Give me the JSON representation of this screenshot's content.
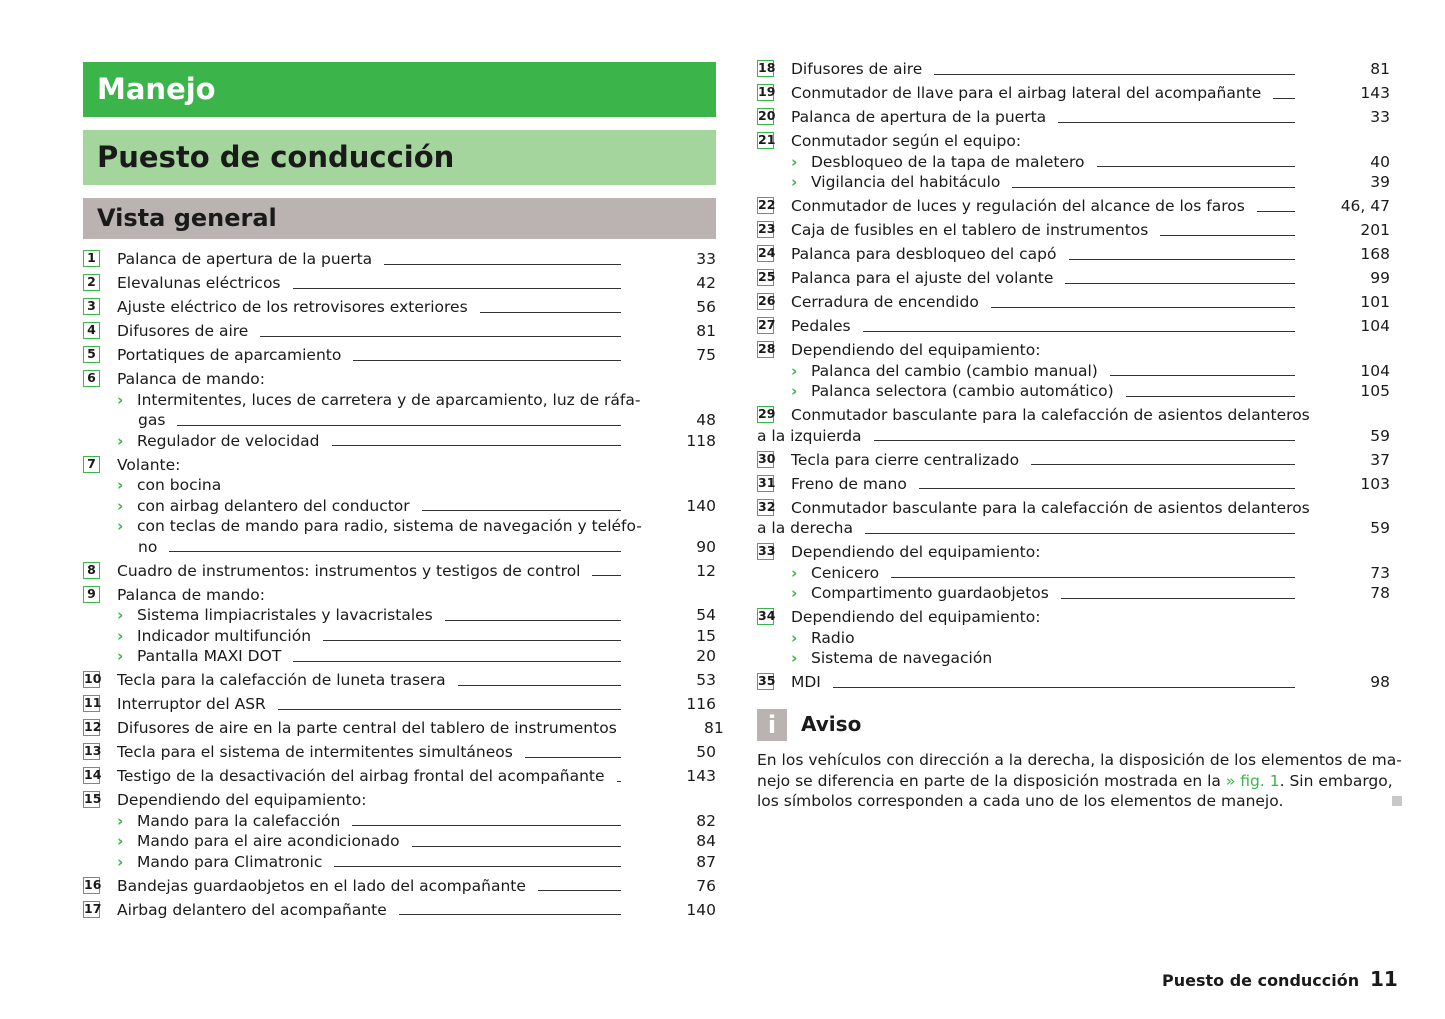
{
  "headers": {
    "chapter": "Manejo",
    "section": "Puesto de conducción",
    "subsection": "Vista general"
  },
  "colors": {
    "chapter_bg": "#3bb54a",
    "section_bg": "#a4d59c",
    "subsection_bg": "#bbb3b1",
    "accent": "#3bb54a"
  },
  "left_items": [
    {
      "num": "1",
      "text": "Palanca de apertura de la puerta",
      "page": "33"
    },
    {
      "num": "2",
      "text": "Elevalunas eléctricos",
      "page": "42"
    },
    {
      "num": "3",
      "text": "Ajuste eléctrico de los retrovisores exteriores",
      "page": "56"
    },
    {
      "num": "4",
      "text": "Difusores de aire",
      "page": "81"
    },
    {
      "num": "5",
      "text": "Portatiques de aparcamiento",
      "page": "75"
    },
    {
      "num": "6",
      "text": "Palanca de mando:",
      "subs": [
        {
          "text": "Intermitentes, luces de carretera y de aparcamiento, luz de ráfa-",
          "cont": "gas",
          "page": "48"
        },
        {
          "text": "Regulador de velocidad",
          "page": "118"
        }
      ]
    },
    {
      "num": "7",
      "text": "Volante:",
      "subs": [
        {
          "text": "con bocina"
        },
        {
          "text": "con airbag delantero del conductor",
          "page": "140"
        },
        {
          "text": "con teclas de mando para radio, sistema de navegación y teléfo-",
          "cont": "no",
          "page": "90"
        }
      ]
    },
    {
      "num": "8",
      "text": "Cuadro de instrumentos: instrumentos y testigos de control",
      "page": "12"
    },
    {
      "num": "9",
      "text": "Palanca de mando:",
      "subs": [
        {
          "text": "Sistema limpiacristales y lavacristales",
          "page": "54"
        },
        {
          "text": "Indicador multifunción",
          "page": "15"
        },
        {
          "text": "Pantalla MAXI DOT",
          "page": "20"
        }
      ]
    },
    {
      "num": "10",
      "text": "Tecla para la calefacción de luneta trasera",
      "page": "53"
    },
    {
      "num": "11",
      "text": "Interruptor del ASR",
      "page": "116"
    },
    {
      "num": "12",
      "text": "Difusores de aire en la parte central del tablero de instrumentos",
      "page": "81"
    },
    {
      "num": "13",
      "text": "Tecla para el sistema de intermitentes simultáneos",
      "page": "50"
    },
    {
      "num": "14",
      "text": "Testigo de la desactivación del airbag frontal del acompañante",
      "page": "143"
    },
    {
      "num": "15",
      "text": "Dependiendo del equipamiento:",
      "subs": [
        {
          "text": "Mando para la calefacción",
          "page": "82"
        },
        {
          "text": "Mando para el aire acondicionado",
          "page": "84"
        },
        {
          "text": "Mando para Climatronic",
          "page": "87"
        }
      ]
    },
    {
      "num": "16",
      "text": "Bandejas guardaobjetos en el lado del acompañante",
      "page": "76"
    },
    {
      "num": "17",
      "text": "Airbag delantero del acompañante",
      "page": "140"
    }
  ],
  "right_items": [
    {
      "num": "18",
      "text": "Difusores de aire",
      "page": "81"
    },
    {
      "num": "19",
      "text": "Conmutador de llave para el airbag lateral del acompañante",
      "page": "143"
    },
    {
      "num": "20",
      "text": "Palanca de apertura de la puerta",
      "page": "33"
    },
    {
      "num": "21",
      "text": "Conmutador según el equipo:",
      "subs": [
        {
          "text": "Desbloqueo de la tapa de maletero",
          "page": "40"
        },
        {
          "text": "Vigilancia del habitáculo",
          "page": "39"
        }
      ]
    },
    {
      "num": "22",
      "text": "Conmutador de luces y regulación del alcance de los faros",
      "page": "46, 47"
    },
    {
      "num": "23",
      "text": "Caja de fusibles en el tablero de instrumentos",
      "page": "201"
    },
    {
      "num": "24",
      "text": "Palanca para desbloqueo del capó",
      "page": "168"
    },
    {
      "num": "25",
      "text": "Palanca para el ajuste del volante",
      "page": "99"
    },
    {
      "num": "26",
      "text": "Cerradura de encendido",
      "page": "101"
    },
    {
      "num": "27",
      "text": "Pedales",
      "page": "104"
    },
    {
      "num": "28",
      "text": "Dependiendo del equipamiento:",
      "subs": [
        {
          "text": "Palanca del cambio (cambio manual)",
          "page": "104"
        },
        {
          "text": "Palanca selectora (cambio automático)",
          "page": "105"
        }
      ]
    },
    {
      "num": "29",
      "text": "Conmutador basculante para la calefacción de asientos delanteros",
      "cont": "a la izquierda",
      "page": "59"
    },
    {
      "num": "30",
      "text": "Tecla para cierre centralizado",
      "page": "37"
    },
    {
      "num": "31",
      "text": "Freno de mano",
      "page": "103"
    },
    {
      "num": "32",
      "text": "Conmutador basculante para la calefacción de asientos delanteros",
      "cont": "a la derecha",
      "page": "59"
    },
    {
      "num": "33",
      "text": "Dependiendo del equipamiento:",
      "subs": [
        {
          "text": "Cenicero",
          "page": "73"
        },
        {
          "text": "Compartimento guardaobjetos",
          "page": "78"
        }
      ]
    },
    {
      "num": "34",
      "text": "Dependiendo del equipamiento:",
      "subs": [
        {
          "text": "Radio"
        },
        {
          "text": "Sistema de navegación"
        }
      ]
    },
    {
      "num": "35",
      "text": "MDI",
      "page": "98"
    }
  ],
  "aviso": {
    "icon": "info-icon",
    "icon_glyph": "i",
    "title": "Aviso",
    "line1": "En los vehículos con dirección a la derecha, la disposición de los elementos de ma-",
    "line2_before": "nejo se diferencia en parte de la disposición mostrada en la ",
    "line2_link": "» fig. 1",
    "line2_after": ". Sin embargo,",
    "line3": "los símbolos corresponden a cada uno de los elementos de manejo."
  },
  "footer": {
    "section_title": "Puesto de conducción",
    "page_number": "11"
  }
}
